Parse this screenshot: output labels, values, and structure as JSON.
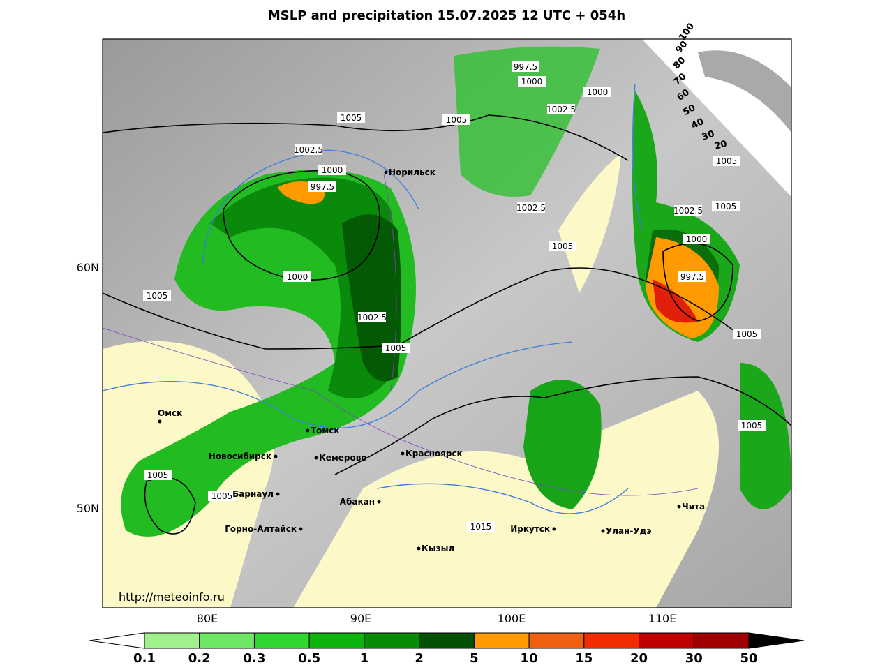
{
  "title": "MSLP and precipitation 15.07.2025 12 UTC + 054h",
  "url": "http://meteoinfo.ru",
  "x_labels": [
    "80E",
    "90E",
    "100E",
    "110E"
  ],
  "y_labels": [
    "60N",
    "50N"
  ],
  "isobar_labels": [
    "997.5",
    "1000",
    "1000",
    "1002.5",
    "1005",
    "1005",
    "1002.5",
    "1000",
    "997.5",
    "1005",
    "1005",
    "1002.5",
    "1002.5",
    "1005",
    "1000",
    "997.5",
    "1000",
    "1005",
    "1002.5",
    "1005",
    "1005",
    "1005",
    "1005",
    "1005",
    "1015"
  ],
  "cities": [
    "Норильск",
    "Омск",
    "Томск",
    "Новосибирск",
    "Кемерово",
    "Красноярск",
    "Барнаул",
    "Абакан",
    "Горно-Алтайск",
    "Кызыл",
    "Иркутск",
    "Улан-Удэ",
    "Чита"
  ],
  "cloud_scale": [
    "100",
    "90",
    "80",
    "70",
    "60",
    "50",
    "40",
    "30",
    "20"
  ],
  "precip_scale": {
    "labels": [
      "0.1",
      "0.2",
      "0.3",
      "0.5",
      "1",
      "2",
      "5",
      "10",
      "15",
      "20",
      "30",
      "50"
    ],
    "colors": [
      "#a0f08c",
      "#6ee864",
      "#2ed82e",
      "#0cb40c",
      "#068c06",
      "#045004",
      "#ff9a00",
      "#f06010",
      "#f02c00",
      "#c00000",
      "#a00000"
    ]
  }
}
